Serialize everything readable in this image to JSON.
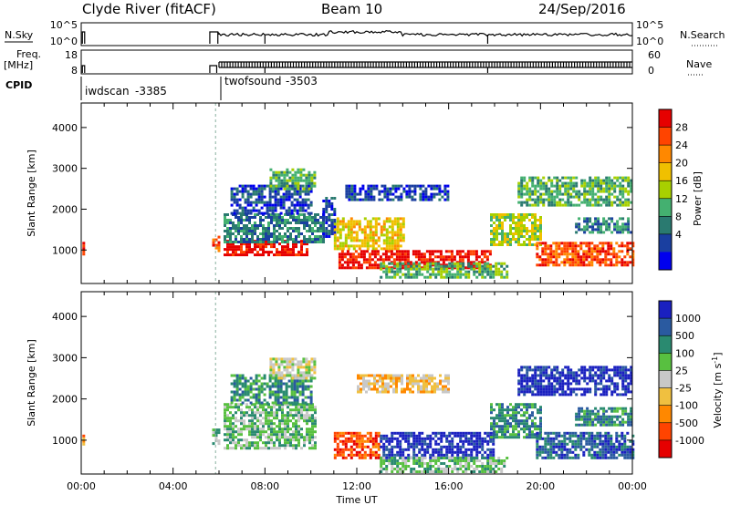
{
  "header": {
    "station": "Clyde River (fitACF)",
    "beam": "Beam 10",
    "date": "24/Sep/2016"
  },
  "noise_panel": {
    "left_label": "N.Sky",
    "right_label": "N.Search",
    "left_ticks": [
      "10^5",
      "10^0"
    ],
    "right_ticks": [
      "10^5",
      "10^0"
    ]
  },
  "freq_panel": {
    "left_label_1": "Freq.",
    "left_label_2": "[MHz]",
    "right_label": "Nave",
    "left_ticks": [
      "18",
      "8"
    ],
    "right_ticks": [
      "60",
      "0"
    ]
  },
  "cpid": {
    "label": "CPID",
    "segments": [
      {
        "name": "iwdscan",
        "id": "-3385"
      },
      {
        "name": "twofsound",
        "id": "-3503"
      }
    ]
  },
  "axes": {
    "ylabel": "Slant Range [km]",
    "xlabel": "Time UT",
    "y_ticks": [
      "1000",
      "2000",
      "3000",
      "4000"
    ],
    "x_ticks": [
      "00:00",
      "04:00",
      "08:00",
      "12:00",
      "16:00",
      "20:00",
      "00:00"
    ]
  },
  "power_scale": {
    "label": "Power [dB]",
    "ticks": [
      "28",
      "24",
      "20",
      "16",
      "12",
      "8",
      "4"
    ],
    "colors": [
      "#e60000",
      "#ff4400",
      "#ff8800",
      "#f0c000",
      "#a8d000",
      "#44b070",
      "#2a7a70",
      "#1a3fa0",
      "#0000ee"
    ]
  },
  "velocity_scale": {
    "label": "Velocity [m s",
    "label_sup": "-1",
    "label_end": "]",
    "ticks": [
      "1000",
      "500",
      "100",
      "25",
      "-25",
      "-100",
      "-500",
      "-1000"
    ],
    "colors": [
      "#1a20c0",
      "#2a5aa0",
      "#2a8a70",
      "#58c040",
      "#c8c8c8",
      "#f0c040",
      "#ff8800",
      "#ff4400",
      "#e60000"
    ]
  },
  "chart_data": {
    "type": "heatmap",
    "x_range_hours": [
      0,
      24
    ],
    "y_range_km": [
      180,
      4600
    ],
    "power_regions": [
      {
        "t0": 0.05,
        "t1": 0.15,
        "r0": 900,
        "r1": 1200,
        "level": 0
      },
      {
        "t0": 5.7,
        "t1": 6.0,
        "r0": 950,
        "r1": 1350,
        "level": 1
      },
      {
        "t0": 6.2,
        "t1": 9.8,
        "r0": 900,
        "r1": 1250,
        "level": 0
      },
      {
        "t0": 6.2,
        "t1": 10.5,
        "r0": 1200,
        "r1": 1900,
        "level": 6
      },
      {
        "t0": 6.5,
        "t1": 10.0,
        "r0": 1900,
        "r1": 2600,
        "level": 7
      },
      {
        "t0": 8.2,
        "t1": 10.2,
        "r0": 2500,
        "r1": 3000,
        "level": 5
      },
      {
        "t0": 10.5,
        "t1": 11.0,
        "r0": 1300,
        "r1": 2300,
        "level": 7
      },
      {
        "t0": 11.5,
        "t1": 16.0,
        "r0": 2200,
        "r1": 2600,
        "level": 7
      },
      {
        "t0": 11.0,
        "t1": 14.0,
        "r0": 1000,
        "r1": 1800,
        "level": 3
      },
      {
        "t0": 11.2,
        "t1": 17.8,
        "r0": 550,
        "r1": 1000,
        "level": 0
      },
      {
        "t0": 13.0,
        "t1": 18.5,
        "r0": 300,
        "r1": 700,
        "level": 5
      },
      {
        "t0": 17.8,
        "t1": 20.0,
        "r0": 1100,
        "r1": 1900,
        "level": 4
      },
      {
        "t0": 19.0,
        "t1": 24.0,
        "r0": 2100,
        "r1": 2800,
        "level": 5
      },
      {
        "t0": 19.8,
        "t1": 24.0,
        "r0": 600,
        "r1": 1200,
        "level": 1
      },
      {
        "t0": 21.5,
        "t1": 24.0,
        "r0": 1400,
        "r1": 1800,
        "level": 6
      }
    ],
    "velocity_regions": [
      {
        "t0": 0.05,
        "t1": 0.15,
        "r0": 900,
        "r1": 1200,
        "level": 6
      },
      {
        "t0": 5.7,
        "t1": 6.0,
        "r0": 950,
        "r1": 1350,
        "level": 3
      },
      {
        "t0": 6.2,
        "t1": 10.2,
        "r0": 800,
        "r1": 1900,
        "level": 3
      },
      {
        "t0": 6.5,
        "t1": 10.0,
        "r0": 1900,
        "r1": 2600,
        "level": 2
      },
      {
        "t0": 8.2,
        "t1": 10.2,
        "r0": 2500,
        "r1": 3000,
        "level": 4
      },
      {
        "t0": 11.0,
        "t1": 13.0,
        "r0": 550,
        "r1": 1200,
        "level": 7
      },
      {
        "t0": 13.0,
        "t1": 18.0,
        "r0": 600,
        "r1": 1200,
        "level": 0
      },
      {
        "t0": 12.0,
        "t1": 16.0,
        "r0": 2200,
        "r1": 2600,
        "level": 5
      },
      {
        "t0": 13.0,
        "t1": 18.5,
        "r0": 250,
        "r1": 600,
        "level": 3
      },
      {
        "t0": 17.8,
        "t1": 20.0,
        "r0": 1100,
        "r1": 1900,
        "level": 2
      },
      {
        "t0": 19.0,
        "t1": 24.0,
        "r0": 2100,
        "r1": 2800,
        "level": 0
      },
      {
        "t0": 19.8,
        "t1": 24.0,
        "r0": 600,
        "r1": 1200,
        "level": 1
      },
      {
        "t0": 21.5,
        "t1": 24.0,
        "r0": 1400,
        "r1": 1800,
        "level": 2
      }
    ]
  }
}
